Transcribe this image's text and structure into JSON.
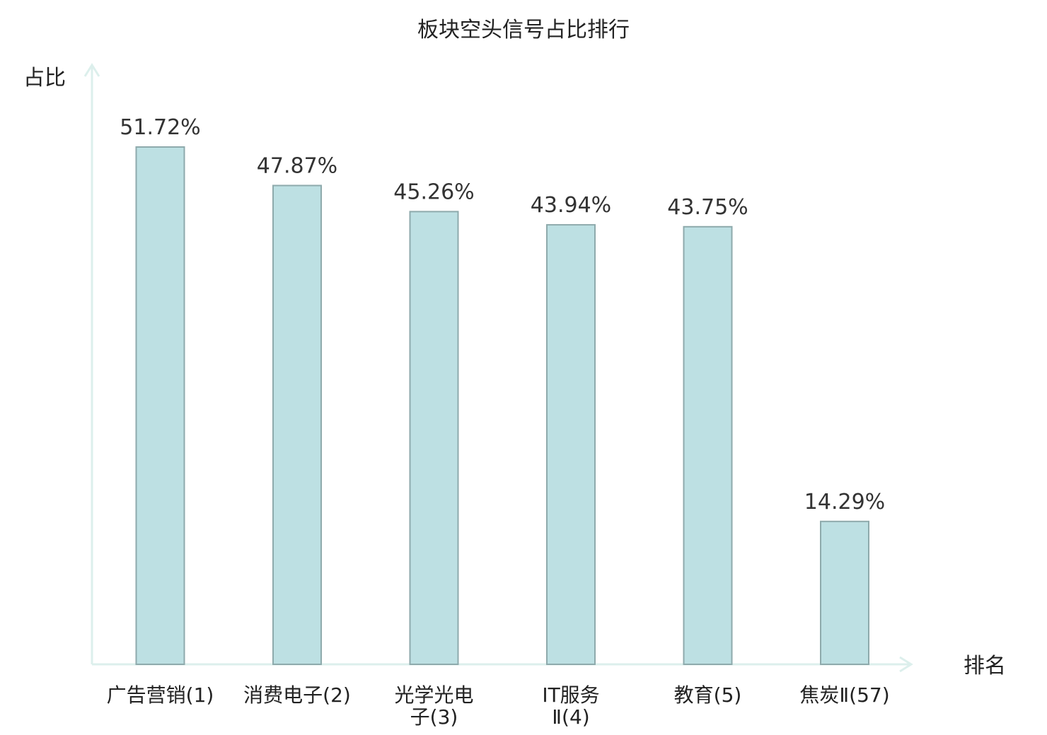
{
  "chart_data": {
    "type": "bar",
    "title": "板块空头信号占比排行",
    "xlabel": "排名",
    "ylabel": "占比",
    "categories": [
      [
        "广告营销(1)"
      ],
      [
        "消费电子(2)"
      ],
      [
        "光学光电",
        "子(3)"
      ],
      [
        "IT服务",
        "Ⅱ(4)"
      ],
      [
        "教育(5)"
      ],
      [
        "焦炭Ⅱ(57)"
      ]
    ],
    "values": [
      51.72,
      47.87,
      45.26,
      43.94,
      43.75,
      14.29
    ],
    "value_labels": [
      "51.72%",
      "47.87%",
      "45.26%",
      "43.94%",
      "43.75%",
      "14.29%"
    ],
    "highlight_index": 5,
    "ylim": [
      0,
      60
    ],
    "grid": false,
    "legend": "none"
  },
  "colors": {
    "bar_fill": "#bde0e3",
    "bar_stroke": "#8eaaac",
    "axis": "#dcefec",
    "text": "#222222",
    "value_text": "#333333",
    "highlight_text": "#d0201f"
  }
}
